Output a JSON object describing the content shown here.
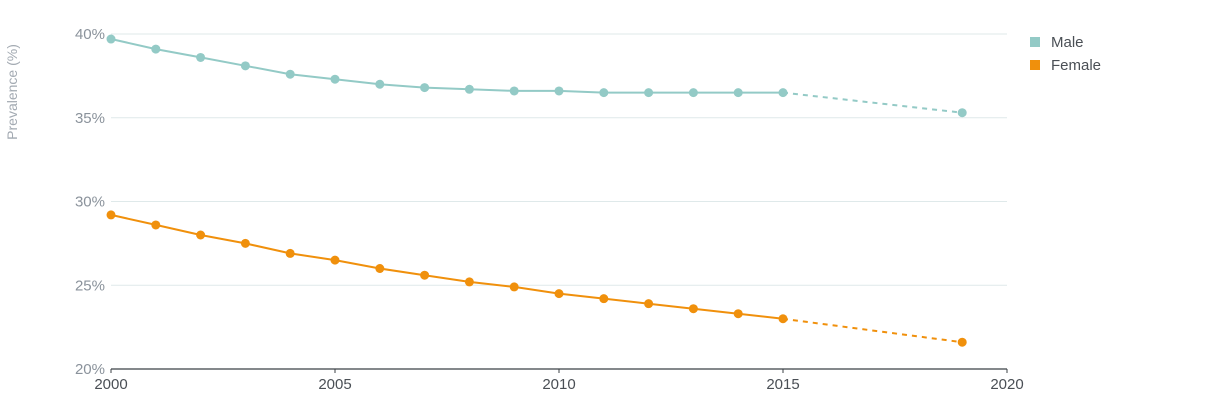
{
  "chart_data": {
    "type": "line",
    "ylabel": "Prevalence (%)",
    "xlabel": "",
    "xlim": [
      2000,
      2020
    ],
    "ylim": [
      20,
      40
    ],
    "x_ticks": [
      "2000",
      "2005",
      "2010",
      "2015",
      "2020"
    ],
    "y_ticks": [
      "20%",
      "25%",
      "30%",
      "35%",
      "40%"
    ],
    "grid": true,
    "legend_position": "top-right",
    "series": [
      {
        "name": "Male",
        "color": "#93cac6",
        "x": [
          2000,
          2001,
          2002,
          2003,
          2004,
          2005,
          2006,
          2007,
          2008,
          2009,
          2010,
          2011,
          2012,
          2013,
          2014,
          2015
        ],
        "values": [
          39.7,
          39.1,
          38.6,
          38.1,
          37.6,
          37.3,
          37.0,
          36.8,
          36.7,
          36.6,
          36.6,
          36.5,
          36.5,
          36.5,
          36.5,
          36.5
        ],
        "projection": {
          "x": [
            2015,
            2019
          ],
          "values": [
            36.5,
            35.3
          ]
        }
      },
      {
        "name": "Female",
        "color": "#f0900c",
        "x": [
          2000,
          2001,
          2002,
          2003,
          2004,
          2005,
          2006,
          2007,
          2008,
          2009,
          2010,
          2011,
          2012,
          2013,
          2014,
          2015
        ],
        "values": [
          29.2,
          28.6,
          28.0,
          27.5,
          26.9,
          26.5,
          26.0,
          25.6,
          25.2,
          24.9,
          24.5,
          24.2,
          23.9,
          23.6,
          23.3,
          23.0
        ],
        "projection": {
          "x": [
            2015,
            2019
          ],
          "values": [
            23.0,
            21.6
          ]
        }
      }
    ]
  }
}
